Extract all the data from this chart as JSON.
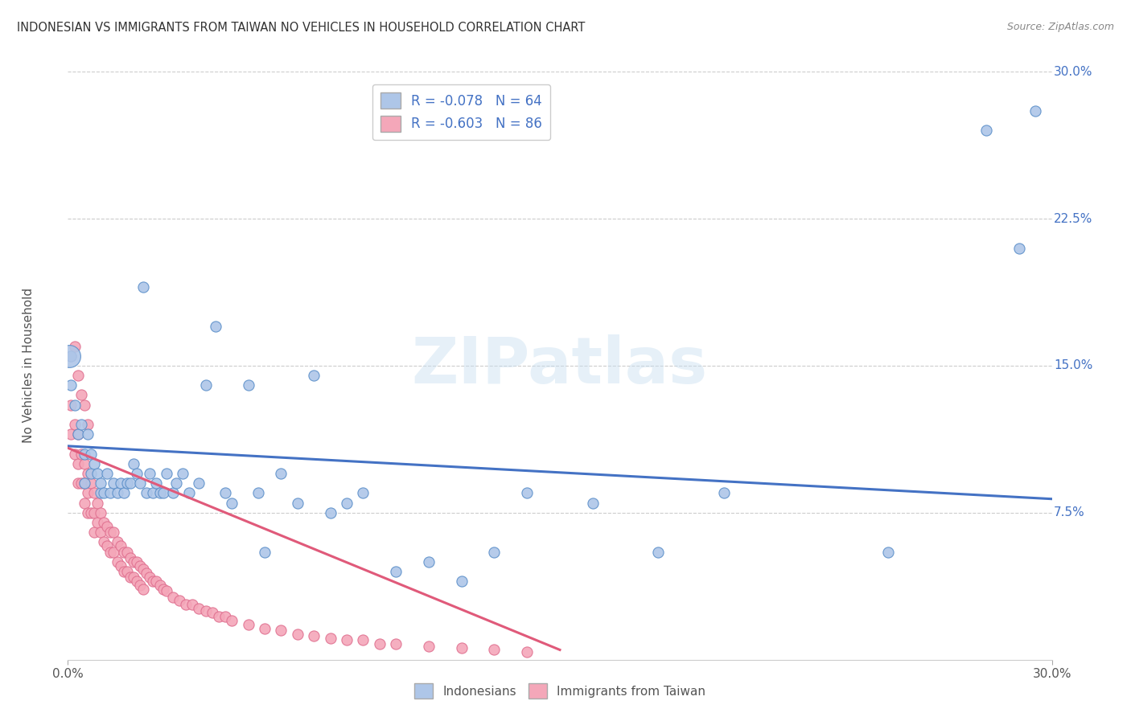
{
  "title": "INDONESIAN VS IMMIGRANTS FROM TAIWAN NO VEHICLES IN HOUSEHOLD CORRELATION CHART",
  "source": "Source: ZipAtlas.com",
  "ylabel": "No Vehicles in Household",
  "legend_labels": [
    "Indonesians",
    "Immigrants from Taiwan"
  ],
  "r1": "-0.078",
  "n1": 64,
  "r2": "-0.603",
  "n2": 86,
  "color_blue": "#aec6e8",
  "color_pink": "#f4a7b9",
  "color_blue_dark": "#5b8fc9",
  "color_pink_dark": "#e07090",
  "line_color_blue": "#4472c4",
  "line_color_pink": "#e05a7a",
  "watermark": "ZIPatlas",
  "x_min": 0.0,
  "x_max": 0.3,
  "y_min": 0.0,
  "y_max": 0.3,
  "indonesian_x": [
    0.001,
    0.001,
    0.002,
    0.003,
    0.004,
    0.005,
    0.005,
    0.006,
    0.007,
    0.007,
    0.008,
    0.009,
    0.01,
    0.01,
    0.011,
    0.012,
    0.013,
    0.014,
    0.015,
    0.016,
    0.017,
    0.018,
    0.019,
    0.02,
    0.021,
    0.022,
    0.023,
    0.024,
    0.025,
    0.026,
    0.027,
    0.028,
    0.029,
    0.03,
    0.032,
    0.033,
    0.035,
    0.037,
    0.04,
    0.042,
    0.045,
    0.048,
    0.05,
    0.055,
    0.058,
    0.06,
    0.065,
    0.07,
    0.075,
    0.08,
    0.085,
    0.09,
    0.1,
    0.11,
    0.12,
    0.13,
    0.14,
    0.16,
    0.18,
    0.2,
    0.25,
    0.28,
    0.29,
    0.295
  ],
  "indonesian_y": [
    0.155,
    0.14,
    0.13,
    0.115,
    0.12,
    0.105,
    0.09,
    0.115,
    0.105,
    0.095,
    0.1,
    0.095,
    0.085,
    0.09,
    0.085,
    0.095,
    0.085,
    0.09,
    0.085,
    0.09,
    0.085,
    0.09,
    0.09,
    0.1,
    0.095,
    0.09,
    0.19,
    0.085,
    0.095,
    0.085,
    0.09,
    0.085,
    0.085,
    0.095,
    0.085,
    0.09,
    0.095,
    0.085,
    0.09,
    0.14,
    0.17,
    0.085,
    0.08,
    0.14,
    0.085,
    0.055,
    0.095,
    0.08,
    0.145,
    0.075,
    0.08,
    0.085,
    0.045,
    0.05,
    0.04,
    0.055,
    0.085,
    0.08,
    0.055,
    0.085,
    0.055,
    0.27,
    0.21,
    0.28
  ],
  "taiwan_x": [
    0.001,
    0.001,
    0.002,
    0.002,
    0.003,
    0.003,
    0.003,
    0.004,
    0.004,
    0.005,
    0.005,
    0.005,
    0.006,
    0.006,
    0.006,
    0.007,
    0.007,
    0.008,
    0.008,
    0.008,
    0.009,
    0.009,
    0.01,
    0.01,
    0.011,
    0.011,
    0.012,
    0.012,
    0.013,
    0.013,
    0.014,
    0.014,
    0.015,
    0.015,
    0.016,
    0.016,
    0.017,
    0.017,
    0.018,
    0.018,
    0.019,
    0.019,
    0.02,
    0.02,
    0.021,
    0.021,
    0.022,
    0.022,
    0.023,
    0.023,
    0.024,
    0.025,
    0.026,
    0.027,
    0.028,
    0.029,
    0.03,
    0.032,
    0.034,
    0.036,
    0.038,
    0.04,
    0.042,
    0.044,
    0.046,
    0.048,
    0.05,
    0.055,
    0.06,
    0.065,
    0.07,
    0.075,
    0.08,
    0.085,
    0.09,
    0.095,
    0.1,
    0.11,
    0.12,
    0.13,
    0.14,
    0.001,
    0.002,
    0.003,
    0.004,
    0.005,
    0.006
  ],
  "taiwan_y": [
    0.13,
    0.115,
    0.12,
    0.105,
    0.115,
    0.1,
    0.09,
    0.105,
    0.09,
    0.1,
    0.09,
    0.08,
    0.095,
    0.085,
    0.075,
    0.09,
    0.075,
    0.085,
    0.075,
    0.065,
    0.08,
    0.07,
    0.075,
    0.065,
    0.07,
    0.06,
    0.068,
    0.058,
    0.065,
    0.055,
    0.065,
    0.055,
    0.06,
    0.05,
    0.058,
    0.048,
    0.055,
    0.045,
    0.055,
    0.045,
    0.052,
    0.042,
    0.05,
    0.042,
    0.05,
    0.04,
    0.048,
    0.038,
    0.046,
    0.036,
    0.044,
    0.042,
    0.04,
    0.04,
    0.038,
    0.036,
    0.035,
    0.032,
    0.03,
    0.028,
    0.028,
    0.026,
    0.025,
    0.024,
    0.022,
    0.022,
    0.02,
    0.018,
    0.016,
    0.015,
    0.013,
    0.012,
    0.011,
    0.01,
    0.01,
    0.008,
    0.008,
    0.007,
    0.006,
    0.005,
    0.004,
    0.155,
    0.16,
    0.145,
    0.135,
    0.13,
    0.12
  ],
  "blue_line_x": [
    0.0,
    0.3
  ],
  "blue_line_y": [
    0.109,
    0.082
  ],
  "pink_line_x": [
    0.0,
    0.15
  ],
  "pink_line_y": [
    0.108,
    0.005
  ]
}
